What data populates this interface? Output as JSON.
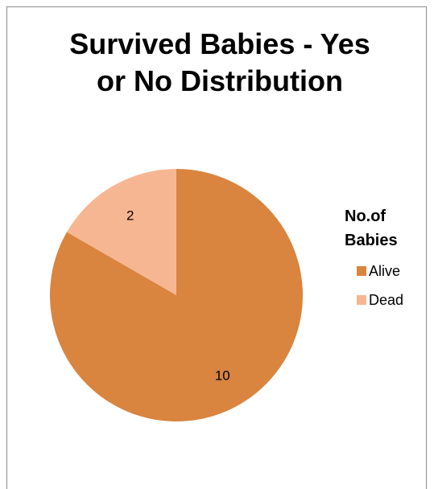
{
  "chart_data": {
    "type": "pie",
    "title_lines": [
      "Survived Babies - Yes",
      "or No Distribution"
    ],
    "legend_title_lines": [
      "No.of",
      "Babies"
    ],
    "legend_position": "right",
    "categories": [
      "Alive",
      "Dead"
    ],
    "values": [
      10,
      2
    ],
    "data_labels": [
      "10",
      "2"
    ],
    "colors": [
      "#d9843f",
      "#f7b692"
    ]
  }
}
